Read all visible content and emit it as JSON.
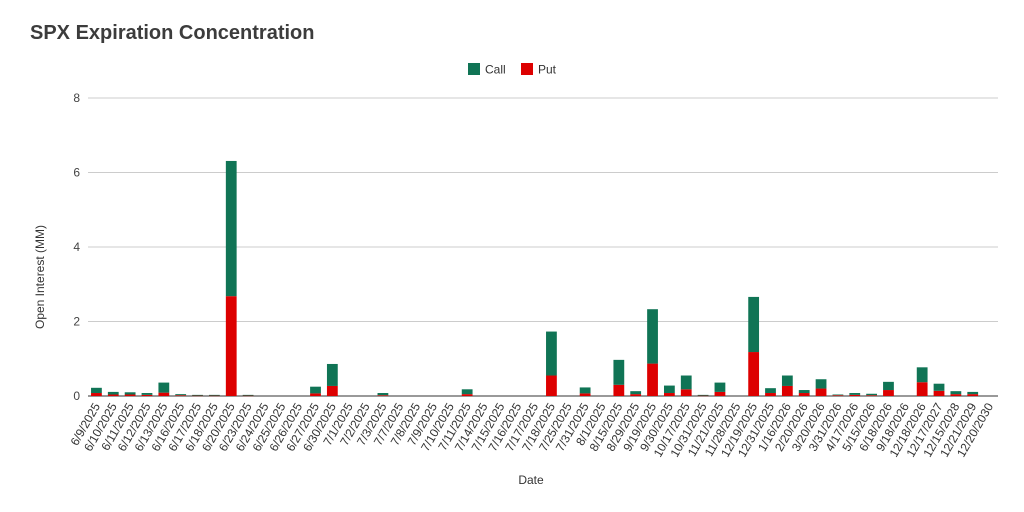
{
  "chart_data": {
    "type": "bar",
    "stacked": true,
    "title": "SPX Expiration Concentration",
    "xlabel": "Date",
    "ylabel": "Open Interest (MM)",
    "ylim": [
      0,
      8
    ],
    "yticks": [
      0,
      2,
      4,
      6,
      8
    ],
    "grid": true,
    "legend_position": "top",
    "categories": [
      "6/9/2025",
      "6/10/2025",
      "6/11/2025",
      "6/12/2025",
      "6/13/2025",
      "6/16/2025",
      "6/17/2025",
      "6/18/2025",
      "6/20/2025",
      "6/23/2025",
      "6/24/2025",
      "6/25/2025",
      "6/26/2025",
      "6/27/2025",
      "6/30/2025",
      "7/1/2025",
      "7/2/2025",
      "7/3/2025",
      "7/7/2025",
      "7/8/2025",
      "7/9/2025",
      "7/10/2025",
      "7/11/2025",
      "7/14/2025",
      "7/15/2025",
      "7/16/2025",
      "7/17/2025",
      "7/18/2025",
      "7/25/2025",
      "7/31/2025",
      "8/1/2025",
      "8/15/2025",
      "8/29/2025",
      "9/19/2025",
      "9/30/2025",
      "10/17/2025",
      "10/31/2025",
      "11/21/2025",
      "11/28/2025",
      "12/19/2025",
      "12/31/2025",
      "1/16/2026",
      "2/20/2026",
      "3/20/2026",
      "3/31/2026",
      "4/17/2026",
      "5/15/2026",
      "6/18/2026",
      "9/18/2026",
      "12/18/2026",
      "12/17/2027",
      "12/15/2028",
      "12/21/2029",
      "12/20/2030"
    ],
    "series": [
      {
        "name": "Put",
        "color": "#dd0000",
        "values": [
          0.08,
          0.04,
          0.04,
          0.03,
          0.09,
          0.02,
          0.01,
          0.01,
          2.68,
          0.01,
          0.0,
          0.0,
          0.0,
          0.07,
          0.27,
          0.0,
          0.0,
          0.02,
          0.0,
          0.0,
          0.0,
          0.0,
          0.05,
          0.0,
          0.0,
          0.0,
          0.0,
          0.55,
          0.0,
          0.07,
          0.0,
          0.3,
          0.05,
          0.87,
          0.08,
          0.18,
          0.01,
          0.11,
          0.0,
          1.18,
          0.08,
          0.27,
          0.08,
          0.2,
          0.02,
          0.03,
          0.02,
          0.16,
          0.0,
          0.37,
          0.14,
          0.05,
          0.05,
          0.0
        ]
      },
      {
        "name": "Call",
        "color": "#107455",
        "values": [
          0.14,
          0.07,
          0.06,
          0.05,
          0.27,
          0.03,
          0.02,
          0.02,
          3.63,
          0.02,
          0.0,
          0.0,
          0.0,
          0.18,
          0.59,
          0.0,
          0.0,
          0.06,
          0.0,
          0.0,
          0.0,
          0.0,
          0.13,
          0.0,
          0.0,
          0.0,
          0.0,
          1.18,
          0.0,
          0.16,
          0.0,
          0.67,
          0.08,
          1.46,
          0.2,
          0.37,
          0.02,
          0.25,
          0.0,
          1.48,
          0.13,
          0.28,
          0.08,
          0.25,
          0.02,
          0.05,
          0.04,
          0.22,
          0.0,
          0.4,
          0.19,
          0.08,
          0.06,
          0.0
        ]
      }
    ]
  }
}
